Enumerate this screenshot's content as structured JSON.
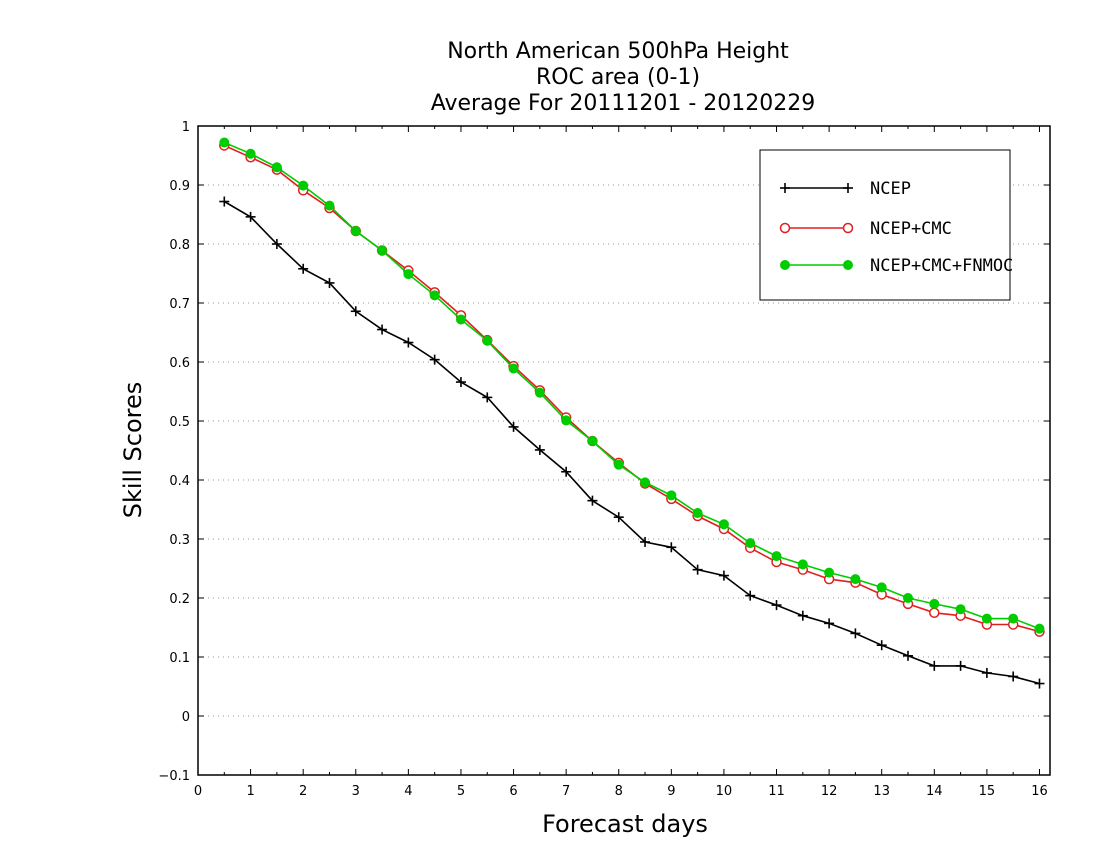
{
  "chart_data": {
    "type": "line",
    "title_lines": [
      "North American 500hPa Height",
      "ROC area (0-1)",
      "Average For 20111201 - 20120229"
    ],
    "xlabel": "Forecast days",
    "ylabel": "Skill Scores",
    "xlim": [
      0,
      16.2
    ],
    "ylim": [
      -0.1,
      1
    ],
    "xticks": [
      "0",
      "1",
      "2",
      "3",
      "4",
      "5",
      "6",
      "7",
      "8",
      "9",
      "10",
      "11",
      "12",
      "13",
      "14",
      "15",
      "16"
    ],
    "yticks": [
      "−0.1",
      "0",
      "0.1",
      "0.2",
      "0.3",
      "0.4",
      "0.5",
      "0.6",
      "0.7",
      "0.8",
      "0.9",
      "1"
    ],
    "grid": "horizontal dotted",
    "legend_position": "top-right",
    "x": [
      0.5,
      1,
      1.5,
      2,
      2.5,
      3,
      3.5,
      4,
      4.5,
      5,
      5.5,
      6,
      6.5,
      7,
      7.5,
      8,
      8.5,
      9,
      9.5,
      10,
      10.5,
      11,
      11.5,
      12,
      12.5,
      13,
      13.5,
      14,
      14.5,
      15,
      15.5,
      16
    ],
    "series": [
      {
        "name": "NCEP",
        "color": "#000000",
        "marker": "plus",
        "values": [
          0.872,
          0.846,
          0.8,
          0.758,
          0.734,
          0.686,
          0.655,
          0.633,
          0.604,
          0.566,
          0.54,
          0.49,
          0.451,
          0.414,
          0.365,
          0.337,
          0.295,
          0.286,
          0.248,
          0.238,
          0.204,
          0.188,
          0.17,
          0.157,
          0.14,
          0.12,
          0.102,
          0.085,
          0.085,
          0.073,
          0.067,
          0.055
        ]
      },
      {
        "name": "NCEP+CMC",
        "color": "#e02020",
        "marker": "open-circle",
        "values": [
          0.967,
          0.947,
          0.926,
          0.891,
          0.861,
          0.822,
          0.789,
          0.755,
          0.718,
          0.679,
          0.637,
          0.593,
          0.552,
          0.506,
          0.466,
          0.429,
          0.394,
          0.368,
          0.339,
          0.317,
          0.285,
          0.261,
          0.248,
          0.232,
          0.226,
          0.206,
          0.19,
          0.175,
          0.17,
          0.155,
          0.155,
          0.143
        ]
      },
      {
        "name": "NCEP+CMC+FNMOC",
        "color": "#00cc00",
        "marker": "filled-circle",
        "values": [
          0.972,
          0.953,
          0.93,
          0.899,
          0.865,
          0.822,
          0.789,
          0.749,
          0.713,
          0.672,
          0.636,
          0.589,
          0.548,
          0.501,
          0.466,
          0.426,
          0.396,
          0.374,
          0.344,
          0.325,
          0.293,
          0.271,
          0.257,
          0.243,
          0.232,
          0.218,
          0.2,
          0.19,
          0.181,
          0.165,
          0.165,
          0.148
        ]
      }
    ]
  }
}
